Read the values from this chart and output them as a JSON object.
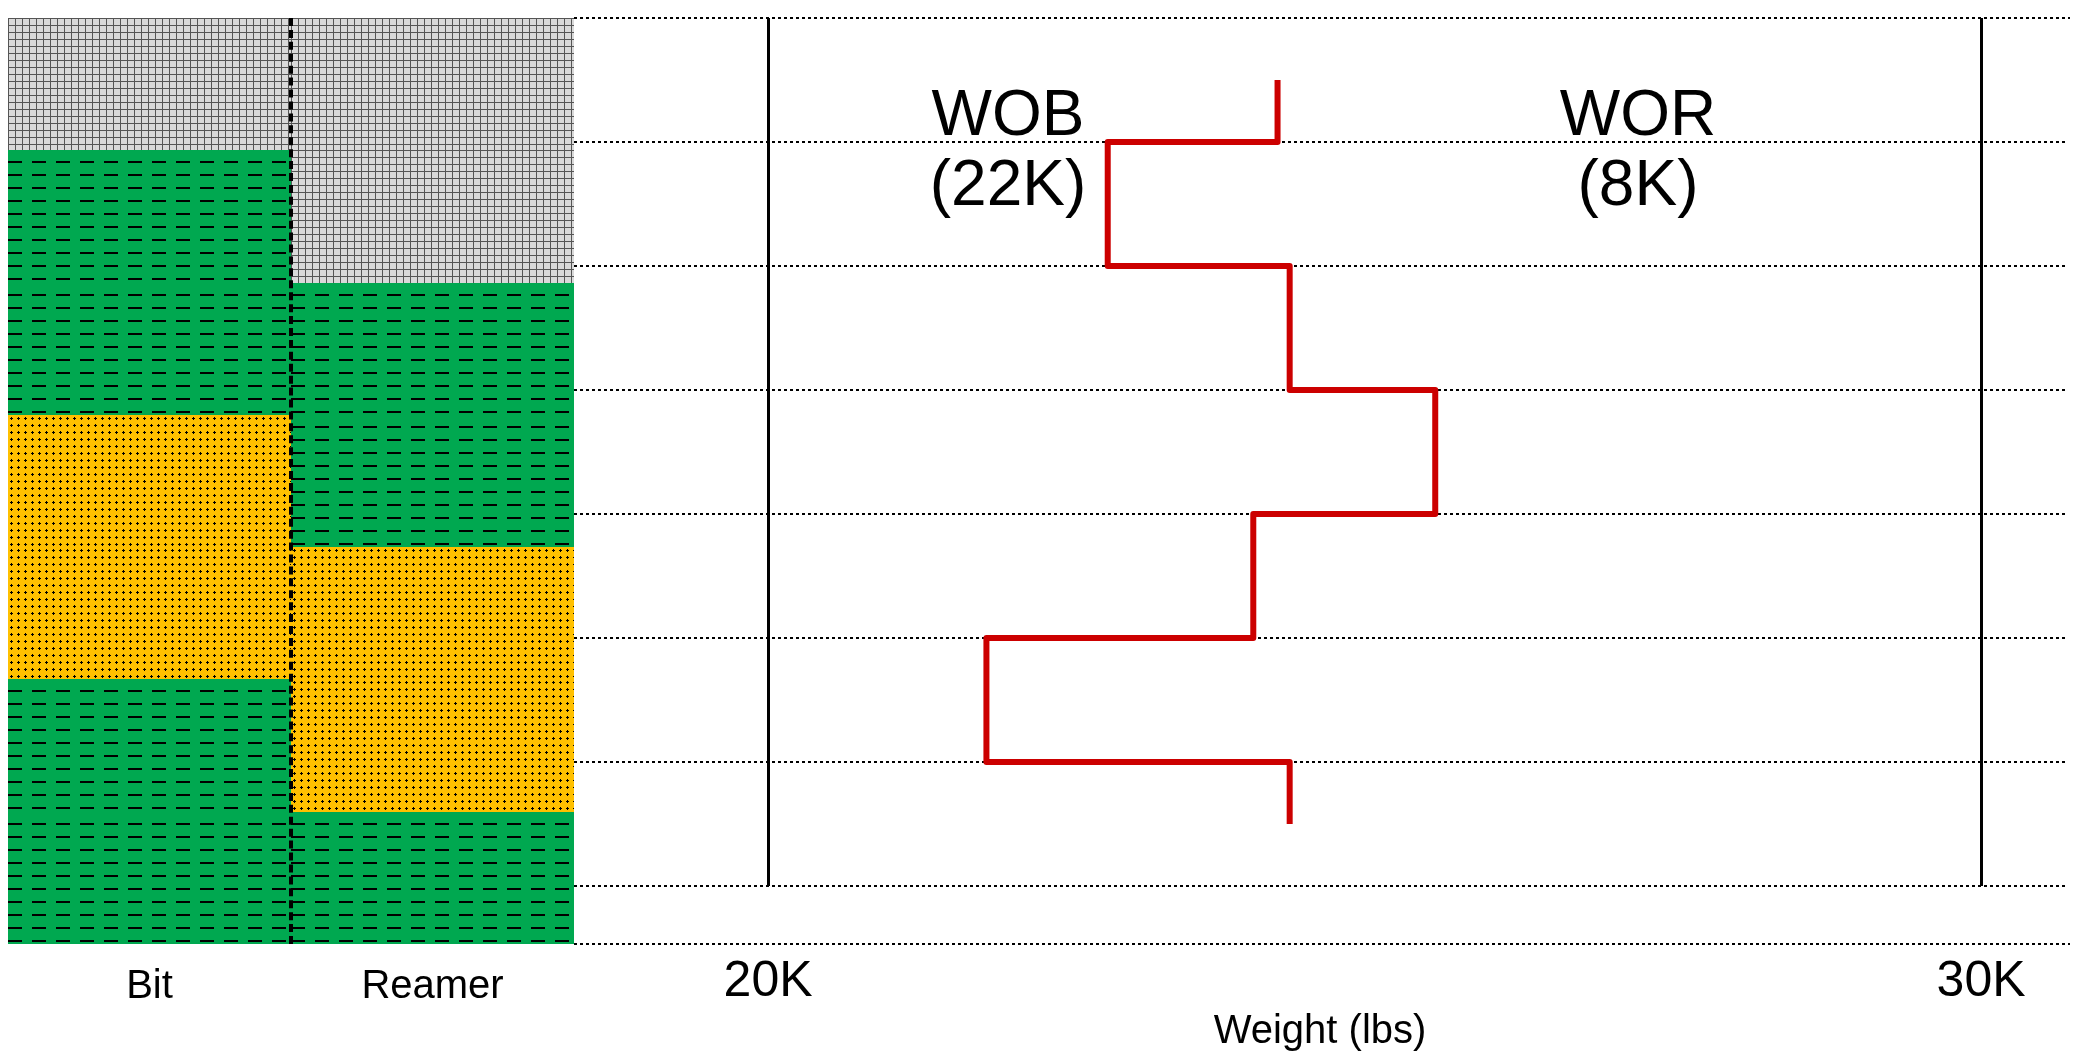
{
  "chart_data": {
    "type": "step",
    "orientation": "horizontal",
    "xlabel": "Weight (lbs)",
    "categories": [
      null,
      null,
      null,
      null,
      null,
      null,
      null
    ],
    "series": [
      {
        "color": "#cc0000",
        "values": [
          24.2,
          22.8,
          24.3,
          25.5,
          24.0,
          21.8,
          24.3
        ]
      }
    ],
    "xlim": [
      18.4,
      30.7
    ],
    "xticks": [
      {
        "value": 20,
        "label": "20K"
      },
      {
        "value": 30,
        "label": "30K"
      }
    ],
    "grid": true,
    "marker": "none",
    "line_style": "solid",
    "annotations": [
      "Bit",
      "Reamer",
      "WOB\n(22K)",
      "WOR\n(8K)"
    ]
  }
}
